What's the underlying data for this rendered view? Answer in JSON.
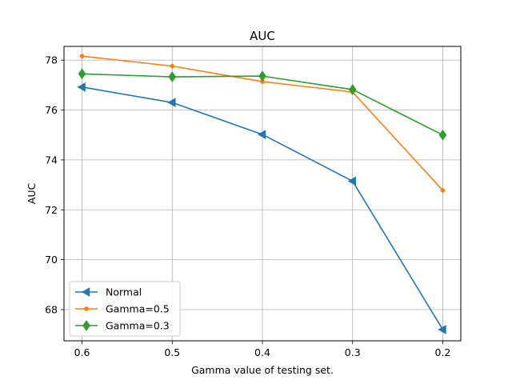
{
  "chart_data": {
    "type": "line",
    "title": "AUC",
    "xlabel": "Gamma value of testing set.",
    "ylabel": "AUC",
    "categories": [
      "0.6",
      "0.5",
      "0.4",
      "0.3",
      "0.2"
    ],
    "ylim": [
      66.75,
      78.55
    ],
    "yticks": [
      68,
      70,
      72,
      74,
      76,
      78
    ],
    "grid": true,
    "legend_position": "lower-left",
    "series": [
      {
        "name": "Normal",
        "color": "#1f77b4",
        "marker": "triangle-left",
        "values": [
          76.92,
          76.3,
          75.02,
          73.15,
          67.2
        ]
      },
      {
        "name": "Gamma=0.5",
        "color": "#ff7f0e",
        "marker": "point",
        "values": [
          78.16,
          77.76,
          77.14,
          76.72,
          72.78
        ]
      },
      {
        "name": "Gamma=0.3",
        "color": "#2ca02c",
        "marker": "diamond",
        "values": [
          77.45,
          77.33,
          77.36,
          76.82,
          75.0
        ]
      }
    ]
  }
}
